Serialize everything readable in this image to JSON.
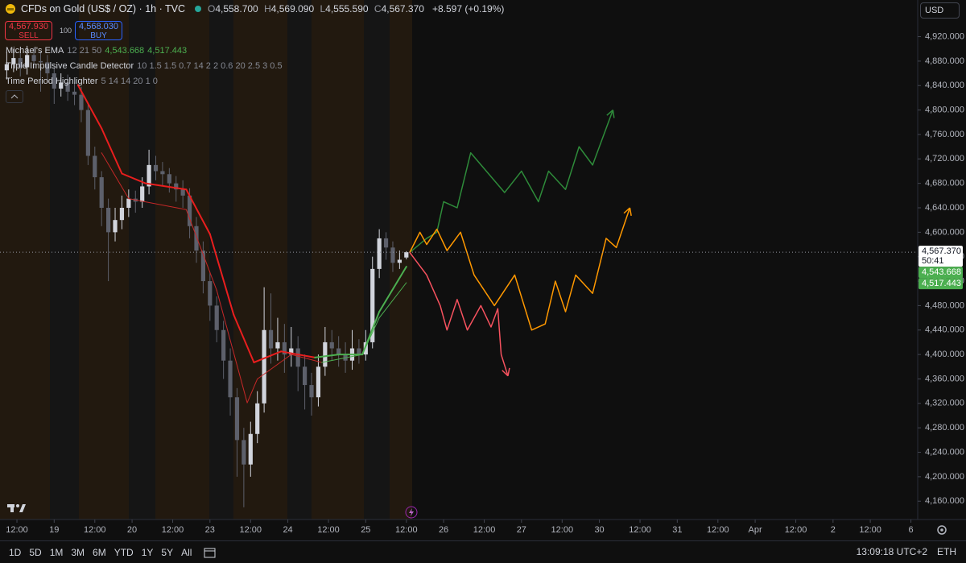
{
  "header": {
    "symbol": "CFDs on Gold (US$ / OZ) · 1h · TVC",
    "ohlc": [
      {
        "label": "O",
        "value": "4,558.700"
      },
      {
        "label": "H",
        "value": "4,569.090"
      },
      {
        "label": "L",
        "value": "4,555.590"
      },
      {
        "label": "C",
        "value": "4,567.370"
      }
    ],
    "change": "+8.597 (+0.19%)",
    "sell": {
      "price": "4,567.930",
      "label": "SELL"
    },
    "spread": "100",
    "buy": {
      "price": "4,568.030",
      "label": "BUY"
    },
    "indicators": [
      {
        "name": "Michael's EMA",
        "params": "12 21 50",
        "values": [
          "4,543.668",
          "4,517.443"
        ]
      },
      {
        "name": "Triple Impulsive Candle Detector",
        "params": "10 1.5 1.5 0.7 14 2 2 0.6 20 2.5 3 0.5"
      },
      {
        "name": "Time Period Highlighter",
        "params": "5 14 14 20 1 0"
      }
    ],
    "currency": "USD",
    "countdown": "50:41"
  },
  "chart_data": {
    "type": "candlestick",
    "up_color": "#d1d4dc",
    "down_color": "#5d606b",
    "xlim": [
      -1,
      270
    ],
    "ylim": [
      4130,
      4980
    ],
    "yticks": [
      {
        "value": 4160,
        "label": "4,160.000"
      },
      {
        "value": 4200,
        "label": "4,200.000"
      },
      {
        "value": 4240,
        "label": "4,240.000"
      },
      {
        "value": 4280,
        "label": "4,280.000"
      },
      {
        "value": 4320,
        "label": "4,320.000"
      },
      {
        "value": 4360,
        "label": "4,360.000"
      },
      {
        "value": 4400,
        "label": "4,400.000"
      },
      {
        "value": 4440,
        "label": "4,440.000"
      },
      {
        "value": 4480,
        "label": "4,480.000"
      },
      {
        "value": 4520,
        "label": "4,520.000"
      },
      {
        "value": 4560,
        "label": "4,560.000"
      },
      {
        "value": 4600,
        "label": "4,600.000"
      },
      {
        "value": 4640,
        "label": "4,640.000"
      },
      {
        "value": 4680,
        "label": "4,680.000"
      },
      {
        "value": 4720,
        "label": "4,720.000"
      },
      {
        "value": 4760,
        "label": "4,760.000"
      },
      {
        "value": 4800,
        "label": "4,800.000"
      },
      {
        "value": 4840,
        "label": "4,840.000"
      },
      {
        "value": 4880,
        "label": "4,880.000"
      },
      {
        "value": 4920,
        "label": "4,920.000"
      }
    ],
    "xticks": [
      {
        "value": 4,
        "label": "12:00"
      },
      {
        "value": 15,
        "label": "19"
      },
      {
        "value": 27,
        "label": "12:00"
      },
      {
        "value": 38,
        "label": "20"
      },
      {
        "value": 50,
        "label": "12:00"
      },
      {
        "value": 61,
        "label": "23"
      },
      {
        "value": 73,
        "label": "12:00"
      },
      {
        "value": 84,
        "label": "24"
      },
      {
        "value": 96,
        "label": "12:00"
      },
      {
        "value": 107,
        "label": "25"
      },
      {
        "value": 119,
        "label": "12:00"
      },
      {
        "value": 130,
        "label": "26"
      },
      {
        "value": 142,
        "label": "12:00"
      },
      {
        "value": 153,
        "label": "27"
      },
      {
        "value": 165,
        "label": "12:00"
      },
      {
        "value": 176,
        "label": "30"
      },
      {
        "value": 188,
        "label": "12:00"
      },
      {
        "value": 199,
        "label": "31"
      },
      {
        "value": 211,
        "label": "12:00"
      },
      {
        "value": 222,
        "label": "Apr"
      },
      {
        "value": 234,
        "label": "12:00"
      },
      {
        "value": 245,
        "label": "2"
      },
      {
        "value": 256,
        "label": "12:00"
      },
      {
        "value": 268,
        "label": "6"
      }
    ],
    "x": [
      1,
      3,
      5,
      7,
      9,
      11,
      13,
      15,
      17,
      19,
      21,
      23,
      25,
      27,
      29,
      31,
      33,
      35,
      37,
      39,
      41,
      43,
      45,
      47,
      49,
      51,
      53,
      55,
      57,
      59,
      61,
      63,
      65,
      67,
      69,
      71,
      73,
      75,
      77,
      79,
      81,
      83,
      85,
      87,
      89,
      91,
      93,
      95,
      97,
      99,
      101,
      103,
      105,
      107,
      109,
      111,
      113,
      115,
      117,
      119
    ],
    "open": [
      4865,
      4875,
      4885,
      4870,
      4890,
      4880,
      4878,
      4860,
      4835,
      4845,
      4830,
      4825,
      4800,
      4725,
      4690,
      4640,
      4600,
      4620,
      4640,
      4655,
      4650,
      4675,
      4710,
      4700,
      4695,
      4680,
      4670,
      4660,
      4610,
      4570,
      4520,
      4480,
      4440,
      4390,
      4330,
      4260,
      4220,
      4270,
      4320,
      4440,
      4410,
      4420,
      4400,
      4410,
      4380,
      4350,
      4330,
      4380,
      4420,
      4410,
      4400,
      4390,
      4410,
      4400,
      4420,
      4540,
      4590,
      4575,
      4550,
      4558.7
    ],
    "high": [
      4895,
      4900,
      4898,
      4905,
      4902,
      4895,
      4890,
      4870,
      4860,
      4858,
      4845,
      4838,
      4812,
      4740,
      4700,
      4655,
      4640,
      4660,
      4670,
      4668,
      4690,
      4735,
      4725,
      4715,
      4705,
      4692,
      4685,
      4672,
      4625,
      4585,
      4535,
      4495,
      4455,
      4410,
      4345,
      4280,
      4290,
      4340,
      4510,
      4500,
      4460,
      4450,
      4445,
      4430,
      4400,
      4370,
      4400,
      4445,
      4440,
      4430,
      4420,
      4440,
      4425,
      4440,
      4560,
      4605,
      4600,
      4585,
      4570,
      4569.09
    ],
    "low": [
      4850,
      4862,
      4855,
      4858,
      4868,
      4830,
      4845,
      4810,
      4822,
      4815,
      4808,
      4780,
      4710,
      4670,
      4610,
      4520,
      4585,
      4605,
      4625,
      4632,
      4640,
      4662,
      4685,
      4675,
      4665,
      4650,
      4640,
      4590,
      4550,
      4500,
      4455,
      4420,
      4360,
      4300,
      4200,
      4150,
      4200,
      4255,
      4305,
      4385,
      4390,
      4370,
      4380,
      4340,
      4310,
      4300,
      4315,
      4365,
      4390,
      4380,
      4370,
      4375,
      4385,
      4390,
      4410,
      4525,
      4555,
      4535,
      4540,
      4555.59
    ],
    "close": [
      4875,
      4885,
      4870,
      4890,
      4880,
      4878,
      4860,
      4835,
      4845,
      4830,
      4825,
      4800,
      4725,
      4690,
      4640,
      4600,
      4620,
      4640,
      4655,
      4650,
      4675,
      4710,
      4700,
      4695,
      4680,
      4670,
      4660,
      4610,
      4570,
      4520,
      4480,
      4440,
      4390,
      4330,
      4260,
      4220,
      4270,
      4320,
      4440,
      4410,
      4420,
      4400,
      4410,
      4380,
      4350,
      4330,
      4380,
      4420,
      4410,
      4400,
      4390,
      4410,
      4400,
      4420,
      4540,
      4590,
      4575,
      4550,
      4555,
      4567.37
    ],
    "overlays": [
      {
        "kind": "ema",
        "width": 2,
        "x": [
          22,
          29,
          35,
          42,
          54,
          61,
          68,
          74,
          82,
          92,
          99,
          106,
          111,
          119
        ],
        "values": [
          4841,
          4770,
          4696,
          4680,
          4670,
          4597,
          4465,
          4387,
          4405,
          4395,
          4400,
          4400,
          4470,
          4543.668
        ],
        "colors": [
          "#e91e1e",
          "#e91e1e",
          "#e91e1e",
          "#e91e1e",
          "#e91e1e",
          "#e91e1e",
          "#e91e1e",
          "#e91e1e",
          "#e91e1e",
          "#e91e1e",
          "#4caf50",
          "#4caf50",
          "#4caf50",
          "#4caf50"
        ]
      },
      {
        "kind": "ema",
        "width": 1,
        "x": [
          29,
          37,
          54,
          63,
          72,
          75,
          85,
          94,
          106,
          111,
          119
        ],
        "values": [
          4730,
          4655,
          4637,
          4505,
          4321,
          4360,
          4400,
          4387,
          4400,
          4460,
          4517.443
        ],
        "colors": [
          "#c62828",
          "#c62828",
          "#c62828",
          "#c62828",
          "#c62828",
          "#c62828",
          "#c62828",
          "#c62828",
          "#4caf50",
          "#4caf50",
          "#4caf50"
        ]
      },
      {
        "kind": "drawing",
        "width": 1.5,
        "x": [
          120,
          125,
          128,
          130,
          134,
          138,
          148,
          153,
          158,
          161,
          166,
          170,
          174,
          180
        ],
        "values": [
          4567,
          4590,
          4600,
          4650,
          4640,
          4730,
          4665,
          4700,
          4650,
          4700,
          4670,
          4740,
          4710,
          4800
        ],
        "color": "#2e8b3a"
      },
      {
        "kind": "drawing",
        "width": 1.5,
        "x": [
          120,
          123,
          125,
          128,
          131,
          135,
          139,
          145,
          151,
          156,
          160,
          163,
          166,
          169,
          174,
          178,
          181,
          185
        ],
        "values": [
          4567,
          4600,
          4580,
          4605,
          4570,
          4600,
          4530,
          4480,
          4530,
          4440,
          4450,
          4520,
          4470,
          4530,
          4500,
          4590,
          4575,
          4640
        ],
        "color": "#ff9800"
      },
      {
        "kind": "drawing",
        "width": 1.5,
        "x": [
          120,
          125,
          129,
          131,
          134,
          137,
          141,
          144,
          146,
          147,
          149
        ],
        "values": [
          4567,
          4530,
          4480,
          4440,
          4490,
          4440,
          4480,
          4445,
          4475,
          4400,
          4365
        ],
        "color": "#f7525f"
      }
    ]
  },
  "toolbar": {
    "ranges": [
      "1D",
      "5D",
      "1M",
      "3M",
      "6M",
      "YTD",
      "1Y",
      "5Y",
      "All"
    ],
    "time": "13:09:18 UTC+2",
    "session": "ETH"
  }
}
